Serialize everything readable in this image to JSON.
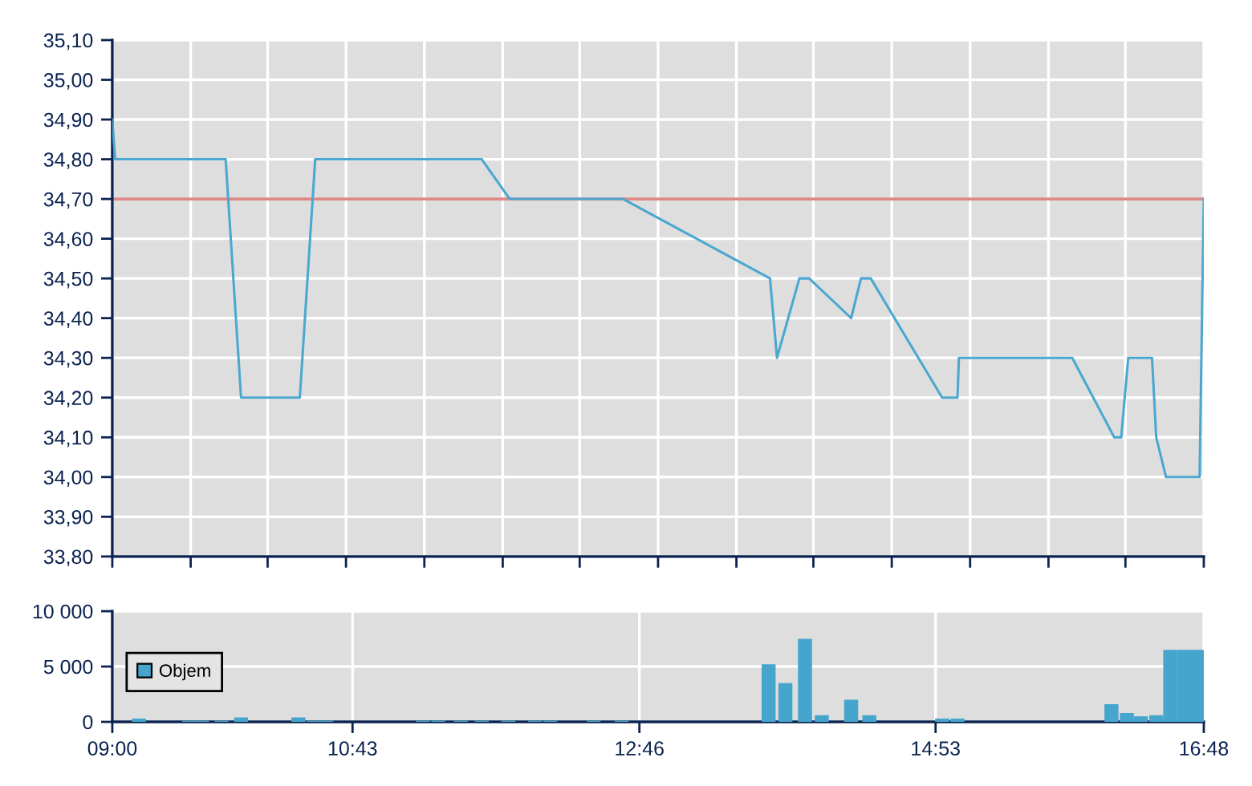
{
  "chart_data": [
    {
      "type": "line",
      "series": [
        {
          "color": "#4aa8d0",
          "x": [
            9.0,
            9.02,
            9.81,
            9.92,
            10.34,
            10.45,
            11.64,
            11.84,
            12.65,
            13.7,
            13.75,
            13.91,
            13.98,
            14.28,
            14.35,
            14.42,
            14.93,
            15.04,
            15.05,
            15.86,
            16.16,
            16.21,
            16.26,
            16.43,
            16.46,
            16.53,
            16.77,
            16.8
          ],
          "values": [
            34.9,
            34.8,
            34.8,
            34.2,
            34.2,
            34.8,
            34.8,
            34.7,
            34.7,
            34.5,
            34.3,
            34.5,
            34.5,
            34.4,
            34.5,
            34.5,
            34.2,
            34.2,
            34.3,
            34.3,
            34.1,
            34.1,
            34.3,
            34.3,
            34.1,
            34.0,
            34.0,
            34.7
          ]
        }
      ],
      "ref_lines": [
        {
          "axis": "y",
          "value": 34.7,
          "color": "#e08888"
        }
      ],
      "xlim": [
        9.0,
        16.8
      ],
      "xticks": [
        {
          "value": 9.0,
          "label": null
        },
        {
          "value": 9.56,
          "label": null
        },
        {
          "value": 10.11,
          "label": null
        },
        {
          "value": 10.67,
          "label": null
        },
        {
          "value": 11.23,
          "label": null
        },
        {
          "value": 11.79,
          "label": null
        },
        {
          "value": 12.34,
          "label": null
        },
        {
          "value": 12.9,
          "label": null
        },
        {
          "value": 13.46,
          "label": null
        },
        {
          "value": 14.01,
          "label": null
        },
        {
          "value": 14.57,
          "label": null
        },
        {
          "value": 15.13,
          "label": null
        },
        {
          "value": 15.69,
          "label": null
        },
        {
          "value": 16.24,
          "label": null
        },
        {
          "value": 16.8,
          "label": null
        }
      ],
      "ylim": [
        33.8,
        35.1
      ],
      "yticks": [
        {
          "value": 33.8,
          "label": "33,80"
        },
        {
          "value": 33.9,
          "label": "33,90"
        },
        {
          "value": 34.0,
          "label": "34,00"
        },
        {
          "value": 34.1,
          "label": "34,10"
        },
        {
          "value": 34.2,
          "label": "34,20"
        },
        {
          "value": 34.3,
          "label": "34,30"
        },
        {
          "value": 34.4,
          "label": "34,40"
        },
        {
          "value": 34.5,
          "label": "34,50"
        },
        {
          "value": 34.6,
          "label": "34,60"
        },
        {
          "value": 34.7,
          "label": "34,70"
        },
        {
          "value": 34.8,
          "label": "34,80"
        },
        {
          "value": 34.9,
          "label": "34,90"
        },
        {
          "value": 35.0,
          "label": "35,00"
        },
        {
          "value": 35.1,
          "label": "35,10"
        }
      ],
      "tick_labels": "y",
      "grid": true,
      "legend": false,
      "marker": "none",
      "line_style": "solid"
    },
    {
      "type": "bar",
      "series": [
        {
          "name": "Objem",
          "color": "#45a5cd",
          "x": [
            9.19,
            9.55,
            9.64,
            9.78,
            9.92,
            10.33,
            10.44,
            10.53,
            11.22,
            11.33,
            11.49,
            11.64,
            11.83,
            12.02,
            12.13,
            12.44,
            12.64,
            13.69,
            13.81,
            13.95,
            14.07,
            14.28,
            14.41,
            14.93,
            15.04,
            16.14,
            16.25,
            16.35,
            16.46,
            16.56,
            16.66,
            16.75
          ],
          "values": [
            300,
            100,
            100,
            100,
            400,
            400,
            100,
            100,
            100,
            100,
            100,
            100,
            100,
            100,
            100,
            100,
            100,
            5200,
            3500,
            7500,
            600,
            2000,
            600,
            300,
            300,
            1600,
            800,
            500,
            600,
            6500,
            6500,
            6500
          ]
        }
      ],
      "xlim": [
        9.0,
        16.8
      ],
      "xticks": [
        {
          "value": 9.0,
          "label": "09:00"
        },
        {
          "value": 10.7167,
          "label": "10:43"
        },
        {
          "value": 12.7667,
          "label": "12:46"
        },
        {
          "value": 14.8833,
          "label": "14:53"
        },
        {
          "value": 16.8,
          "label": "16:48"
        }
      ],
      "ylim": [
        0,
        10000
      ],
      "yticks": [
        {
          "value": 0,
          "label": "0"
        },
        {
          "value": 5000,
          "label": "5 000"
        },
        {
          "value": 10000,
          "label": "10 000"
        }
      ],
      "grid": true,
      "legend": "left"
    }
  ]
}
